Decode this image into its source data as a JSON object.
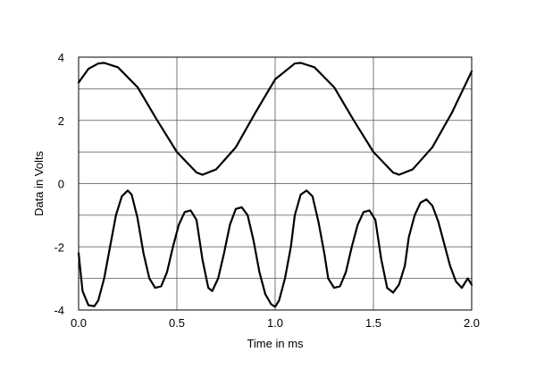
{
  "chart_data": {
    "type": "line",
    "title": "",
    "xlabel": "Time in ms",
    "ylabel": "Data in Volts",
    "xlim": [
      0,
      2.0
    ],
    "ylim": [
      -4,
      4
    ],
    "grid": true,
    "x_ticks": [
      0.0,
      0.5,
      1.0,
      1.5,
      2.0
    ],
    "x_tick_labels": [
      "0.0",
      "0.5",
      "1.0",
      "1.5",
      "2.0"
    ],
    "y_ticks": [
      -4,
      -3,
      -2,
      -1,
      0,
      1,
      2,
      3,
      4
    ],
    "y_tick_labels": [
      "-4",
      "",
      "-2",
      "",
      "0",
      "",
      "2",
      "",
      "4"
    ],
    "series": [
      {
        "x": [
          0.0,
          0.05,
          0.1,
          0.13,
          0.2,
          0.3,
          0.4,
          0.5,
          0.6,
          0.63,
          0.7,
          0.8,
          0.9,
          1.0,
          1.1,
          1.13,
          1.2,
          1.3,
          1.4,
          1.5,
          1.6,
          1.63,
          1.7,
          1.8,
          1.9,
          2.0
        ],
        "y": [
          3.2,
          3.63,
          3.8,
          3.82,
          3.68,
          3.05,
          2.0,
          1.0,
          0.35,
          0.28,
          0.45,
          1.15,
          2.25,
          3.3,
          3.8,
          3.82,
          3.68,
          3.05,
          2.0,
          1.0,
          0.35,
          0.28,
          0.45,
          1.15,
          2.25,
          3.55
        ]
      },
      {
        "x": [
          0.0,
          0.02,
          0.05,
          0.08,
          0.1,
          0.13,
          0.16,
          0.19,
          0.22,
          0.25,
          0.27,
          0.3,
          0.33,
          0.36,
          0.39,
          0.42,
          0.45,
          0.48,
          0.51,
          0.54,
          0.57,
          0.6,
          0.63,
          0.66,
          0.68,
          0.71,
          0.74,
          0.77,
          0.8,
          0.83,
          0.86,
          0.89,
          0.92,
          0.95,
          0.98,
          1.0,
          1.02,
          1.05,
          1.08,
          1.1,
          1.13,
          1.16,
          1.19,
          1.22,
          1.25,
          1.27,
          1.3,
          1.33,
          1.36,
          1.39,
          1.42,
          1.45,
          1.48,
          1.51,
          1.54,
          1.57,
          1.6,
          1.63,
          1.66,
          1.68,
          1.71,
          1.74,
          1.77,
          1.8,
          1.83,
          1.86,
          1.89,
          1.92,
          1.95,
          1.98,
          2.0
        ],
        "y": [
          -2.2,
          -3.4,
          -3.85,
          -3.88,
          -3.7,
          -3.0,
          -2.0,
          -1.0,
          -0.4,
          -0.22,
          -0.35,
          -1.1,
          -2.2,
          -3.0,
          -3.3,
          -3.25,
          -2.8,
          -2.0,
          -1.3,
          -0.9,
          -0.85,
          -1.15,
          -2.4,
          -3.3,
          -3.4,
          -3.0,
          -2.2,
          -1.3,
          -0.8,
          -0.75,
          -1.0,
          -1.8,
          -2.8,
          -3.5,
          -3.82,
          -3.9,
          -3.7,
          -3.0,
          -2.0,
          -1.0,
          -0.35,
          -0.22,
          -0.4,
          -1.2,
          -2.2,
          -3.0,
          -3.3,
          -3.25,
          -2.8,
          -2.0,
          -1.3,
          -0.9,
          -0.85,
          -1.15,
          -2.4,
          -3.3,
          -3.45,
          -3.2,
          -2.6,
          -1.7,
          -1.0,
          -0.6,
          -0.5,
          -0.7,
          -1.2,
          -1.9,
          -2.6,
          -3.1,
          -3.3,
          -3.0,
          -3.2
        ]
      }
    ],
    "line_color": "#000000",
    "grid_color": "#555555"
  }
}
